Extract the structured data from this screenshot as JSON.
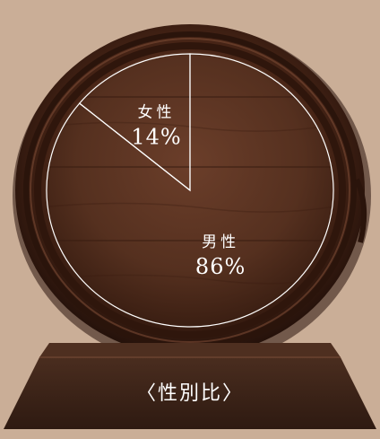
{
  "chart_data": {
    "type": "pie",
    "caption": "〈性別比〉",
    "slices": [
      {
        "label": "女性",
        "value": 14,
        "value_label": "14%"
      },
      {
        "label": "男性",
        "value": 86,
        "value_label": "86%"
      }
    ],
    "start": "top",
    "direction": "counterclockwise",
    "slice_stroke_color": "#ffffff",
    "label_color": "#ffffff"
  },
  "colors": {
    "background": "#caae97",
    "barrel_rim": "#3b1f12",
    "barrel_face": "#5a3322",
    "stand": "#3d2418"
  }
}
